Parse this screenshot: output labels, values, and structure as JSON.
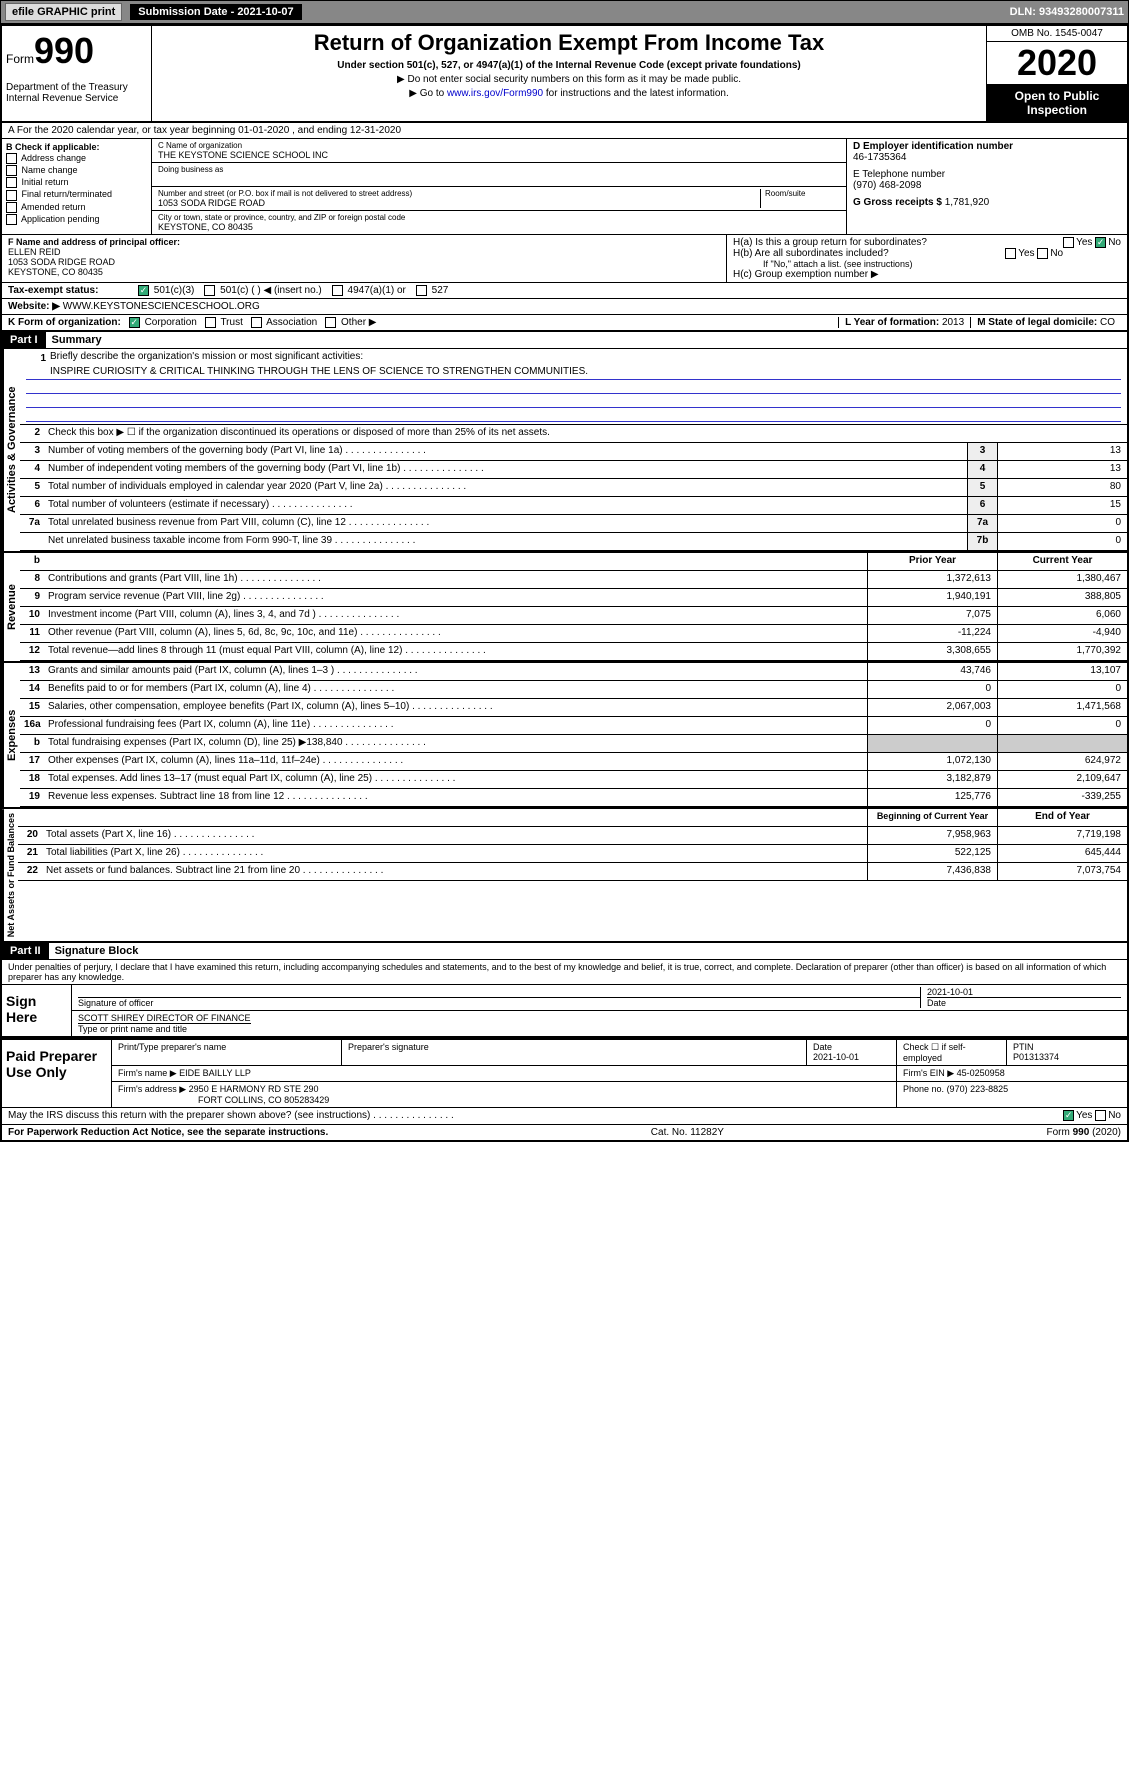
{
  "topbar": {
    "efile": "efile GRAPHIC print",
    "submission_label": "Submission Date - 2021-10-07",
    "dln": "DLN: 93493280007311"
  },
  "header": {
    "form_word": "Form",
    "form_num": "990",
    "dept": "Department of the Treasury\nInternal Revenue Service",
    "title": "Return of Organization Exempt From Income Tax",
    "subtitle": "Under section 501(c), 527, or 4947(a)(1) of the Internal Revenue Code (except private foundations)",
    "line1": "▶ Do not enter social security numbers on this form as it may be made public.",
    "line2_pre": "▶ Go to ",
    "line2_link": "www.irs.gov/Form990",
    "line2_post": " for instructions and the latest information.",
    "omb": "OMB No. 1545-0047",
    "year": "2020",
    "open_pub": "Open to Public Inspection"
  },
  "rowA": "A For the 2020 calendar year, or tax year beginning 01-01-2020    , and ending 12-31-2020",
  "colB": {
    "hdr": "B Check if applicable:",
    "items": [
      "Address change",
      "Name change",
      "Initial return",
      "Final return/terminated",
      "Amended return",
      "Application pending"
    ]
  },
  "colC": {
    "name_label": "C Name of organization",
    "name": "THE KEYSTONE SCIENCE SCHOOL INC",
    "dba_label": "Doing business as",
    "addr_label": "Number and street (or P.O. box if mail is not delivered to street address)",
    "room_label": "Room/suite",
    "addr": "1053 SODA RIDGE ROAD",
    "city_label": "City or town, state or province, country, and ZIP or foreign postal code",
    "city": "KEYSTONE, CO  80435"
  },
  "colD": {
    "ein_label": "D Employer identification number",
    "ein": "46-1735364",
    "phone_label": "E Telephone number",
    "phone": "(970) 468-2098",
    "gross_label": "G Gross receipts $",
    "gross": "1,781,920"
  },
  "rowF": {
    "label": "F  Name and address of principal officer:",
    "name": "ELLEN REID",
    "addr1": "1053 SODA RIDGE ROAD",
    "addr2": "KEYSTONE, CO  80435"
  },
  "rowH": {
    "ha": "H(a)  Is this a group return for subordinates?",
    "hb": "H(b)  Are all subordinates included?",
    "hb_note": "If \"No,\" attach a list. (see instructions)",
    "hc": "H(c)  Group exemption number ▶"
  },
  "rowI": {
    "label": "Tax-exempt status:",
    "opts": [
      "501(c)(3)",
      "501(c) (  ) ◀ (insert no.)",
      "4947(a)(1) or",
      "527"
    ]
  },
  "rowJ": {
    "label": "Website: ▶",
    "val": "WWW.KEYSTONESCIENCESCHOOL.ORG"
  },
  "rowK": {
    "label": "K Form of organization:",
    "opts": [
      "Corporation",
      "Trust",
      "Association",
      "Other ▶"
    ],
    "l_label": "L Year of formation:",
    "l_val": "2013",
    "m_label": "M State of legal domicile:",
    "m_val": "CO"
  },
  "part1": {
    "hdr": "Part I",
    "title": "Summary",
    "mission_label": "Briefly describe the organization's mission or most significant activities:",
    "mission": "INSPIRE CURIOSITY & CRITICAL THINKING THROUGH THE LENS OF SCIENCE TO STRENGTHEN COMMUNITIES.",
    "line2": "Check this box ▶ ☐  if the organization discontinued its operations or disposed of more than 25% of its net assets.",
    "gov_lines": [
      {
        "n": "3",
        "d": "Number of voting members of the governing body (Part VI, line 1a)",
        "b": "3",
        "v": "13"
      },
      {
        "n": "4",
        "d": "Number of independent voting members of the governing body (Part VI, line 1b)",
        "b": "4",
        "v": "13"
      },
      {
        "n": "5",
        "d": "Total number of individuals employed in calendar year 2020 (Part V, line 2a)",
        "b": "5",
        "v": "80"
      },
      {
        "n": "6",
        "d": "Total number of volunteers (estimate if necessary)",
        "b": "6",
        "v": "15"
      },
      {
        "n": "7a",
        "d": "Total unrelated business revenue from Part VIII, column (C), line 12",
        "b": "7a",
        "v": "0"
      },
      {
        "n": "",
        "d": "Net unrelated business taxable income from Form 990-T, line 39",
        "b": "7b",
        "v": "0"
      }
    ],
    "col_prior": "Prior Year",
    "col_curr": "Current Year",
    "rev_lines": [
      {
        "n": "8",
        "d": "Contributions and grants (Part VIII, line 1h)",
        "p": "1,372,613",
        "c": "1,380,467"
      },
      {
        "n": "9",
        "d": "Program service revenue (Part VIII, line 2g)",
        "p": "1,940,191",
        "c": "388,805"
      },
      {
        "n": "10",
        "d": "Investment income (Part VIII, column (A), lines 3, 4, and 7d )",
        "p": "7,075",
        "c": "6,060"
      },
      {
        "n": "11",
        "d": "Other revenue (Part VIII, column (A), lines 5, 6d, 8c, 9c, 10c, and 11e)",
        "p": "-11,224",
        "c": "-4,940"
      },
      {
        "n": "12",
        "d": "Total revenue—add lines 8 through 11 (must equal Part VIII, column (A), line 12)",
        "p": "3,308,655",
        "c": "1,770,392"
      }
    ],
    "exp_lines": [
      {
        "n": "13",
        "d": "Grants and similar amounts paid (Part IX, column (A), lines 1–3 )",
        "p": "43,746",
        "c": "13,107"
      },
      {
        "n": "14",
        "d": "Benefits paid to or for members (Part IX, column (A), line 4)",
        "p": "0",
        "c": "0"
      },
      {
        "n": "15",
        "d": "Salaries, other compensation, employee benefits (Part IX, column (A), lines 5–10)",
        "p": "2,067,003",
        "c": "1,471,568"
      },
      {
        "n": "16a",
        "d": "Professional fundraising fees (Part IX, column (A), line 11e)",
        "p": "0",
        "c": "0"
      },
      {
        "n": "b",
        "d": "Total fundraising expenses (Part IX, column (D), line 25) ▶138,840",
        "p": "",
        "c": ""
      },
      {
        "n": "17",
        "d": "Other expenses (Part IX, column (A), lines 11a–11d, 11f–24e)",
        "p": "1,072,130",
        "c": "624,972"
      },
      {
        "n": "18",
        "d": "Total expenses. Add lines 13–17 (must equal Part IX, column (A), line 25)",
        "p": "3,182,879",
        "c": "2,109,647"
      },
      {
        "n": "19",
        "d": "Revenue less expenses. Subtract line 18 from line 12",
        "p": "125,776",
        "c": "-339,255"
      }
    ],
    "col_beg": "Beginning of Current Year",
    "col_end": "End of Year",
    "net_lines": [
      {
        "n": "20",
        "d": "Total assets (Part X, line 16)",
        "p": "7,958,963",
        "c": "7,719,198"
      },
      {
        "n": "21",
        "d": "Total liabilities (Part X, line 26)",
        "p": "522,125",
        "c": "645,444"
      },
      {
        "n": "22",
        "d": "Net assets or fund balances. Subtract line 21 from line 20",
        "p": "7,436,838",
        "c": "7,073,754"
      }
    ]
  },
  "part2": {
    "hdr": "Part II",
    "title": "Signature Block",
    "perjury": "Under penalties of perjury, I declare that I have examined this return, including accompanying schedules and statements, and to the best of my knowledge and belief, it is true, correct, and complete. Declaration of preparer (other than officer) is based on all information of which preparer has any knowledge.",
    "sign_here": "Sign Here",
    "sig_officer": "Signature of officer",
    "sig_date": "2021-10-01",
    "date_label": "Date",
    "officer_name": "SCOTT SHIREY  DIRECTOR OF FINANCE",
    "type_name_label": "Type or print name and title",
    "paid_prep": "Paid Preparer Use Only",
    "prep_name_label": "Print/Type preparer's name",
    "prep_sig_label": "Preparer's signature",
    "prep_date": "2021-10-01",
    "self_emp": "Check ☐ if self-employed",
    "ptin_label": "PTIN",
    "ptin": "P01313374",
    "firm_name_label": "Firm's name    ▶",
    "firm_name": "EIDE BAILLY LLP",
    "firm_ein_label": "Firm's EIN ▶",
    "firm_ein": "45-0250958",
    "firm_addr_label": "Firm's address ▶",
    "firm_addr": "2950 E HARMONY RD STE 290",
    "firm_city": "FORT COLLINS, CO  805283429",
    "firm_phone_label": "Phone no.",
    "firm_phone": "(970) 223-8825",
    "discuss": "May the IRS discuss this return with the preparer shown above? (see instructions)"
  },
  "footer": {
    "pra": "For Paperwork Reduction Act Notice, see the separate instructions.",
    "cat": "Cat. No. 11282Y",
    "form": "Form 990 (2020)"
  },
  "side_labels": {
    "gov": "Activities & Governance",
    "rev": "Revenue",
    "exp": "Expenses",
    "net": "Net Assets or Fund Balances"
  }
}
